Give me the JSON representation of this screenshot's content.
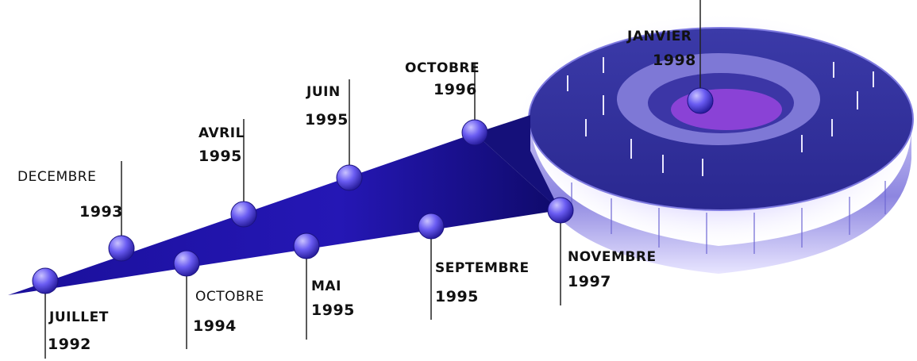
{
  "colors": {
    "ramp_dark": "#1a0f9a",
    "ramp_light": "#6c63ff",
    "node": "#6a5cf2",
    "stadium_roof": "#4b47b6",
    "stadium_glow": "#d9d2ff"
  },
  "milestones": [
    {
      "month": "JUILLET",
      "year": "1992"
    },
    {
      "month": "DECEMBRE",
      "year": "1993"
    },
    {
      "month": "OCTOBRE",
      "year": "1994"
    },
    {
      "month": "AVRIL",
      "year": "1995"
    },
    {
      "month": "MAI",
      "year": "1995"
    },
    {
      "month": "JUIN",
      "year": "1995"
    },
    {
      "month": "SEPTEMBRE",
      "year": "1995"
    },
    {
      "month": "OCTOBRE",
      "year": "1996"
    },
    {
      "month": "NOVEMBRE",
      "year": "1997"
    },
    {
      "month": "JANVIER",
      "year": "1998"
    }
  ],
  "image_subject": "stadium-illustration"
}
